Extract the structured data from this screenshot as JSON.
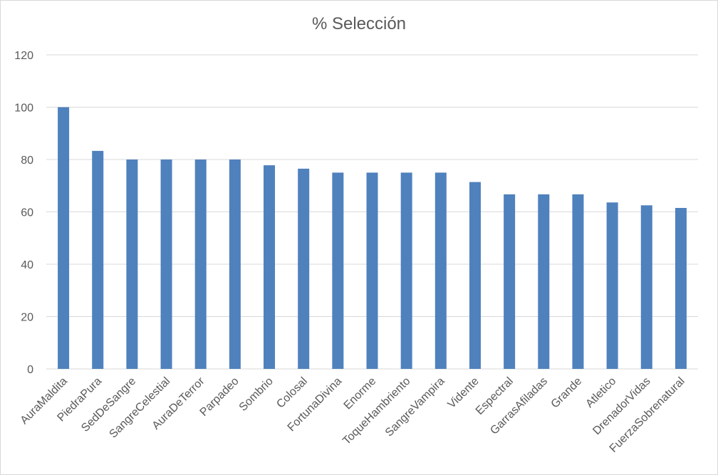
{
  "chart_data": {
    "type": "bar",
    "title": "% Selección",
    "xlabel": "",
    "ylabel": "",
    "ylim": [
      0,
      120
    ],
    "yticks": [
      0,
      20,
      40,
      60,
      80,
      100,
      120
    ],
    "grid": true,
    "legend": "none",
    "bar_color": "#4f81bd",
    "grid_color": "#d9d9d9",
    "categories": [
      "AuraMaldita",
      "PiedraPura",
      "SedDeSangre",
      "SangreCelestial",
      "AuraDeTerror",
      "Parpadeo",
      "Sombrio",
      "Colosal",
      "FortunaDivina",
      "Enorme",
      "ToqueHambriento",
      "SangreVampira",
      "Vidente",
      "Espectral",
      "GarrasAfiladas",
      "Grande",
      "Atletico",
      "DrenadorVidas",
      "FuerzaSobrenatural"
    ],
    "values": [
      100,
      83.3,
      80,
      80,
      80,
      80,
      77.8,
      76.5,
      75,
      75,
      75,
      75,
      71.4,
      66.7,
      66.7,
      66.7,
      63.6,
      62.5,
      61.5
    ]
  }
}
